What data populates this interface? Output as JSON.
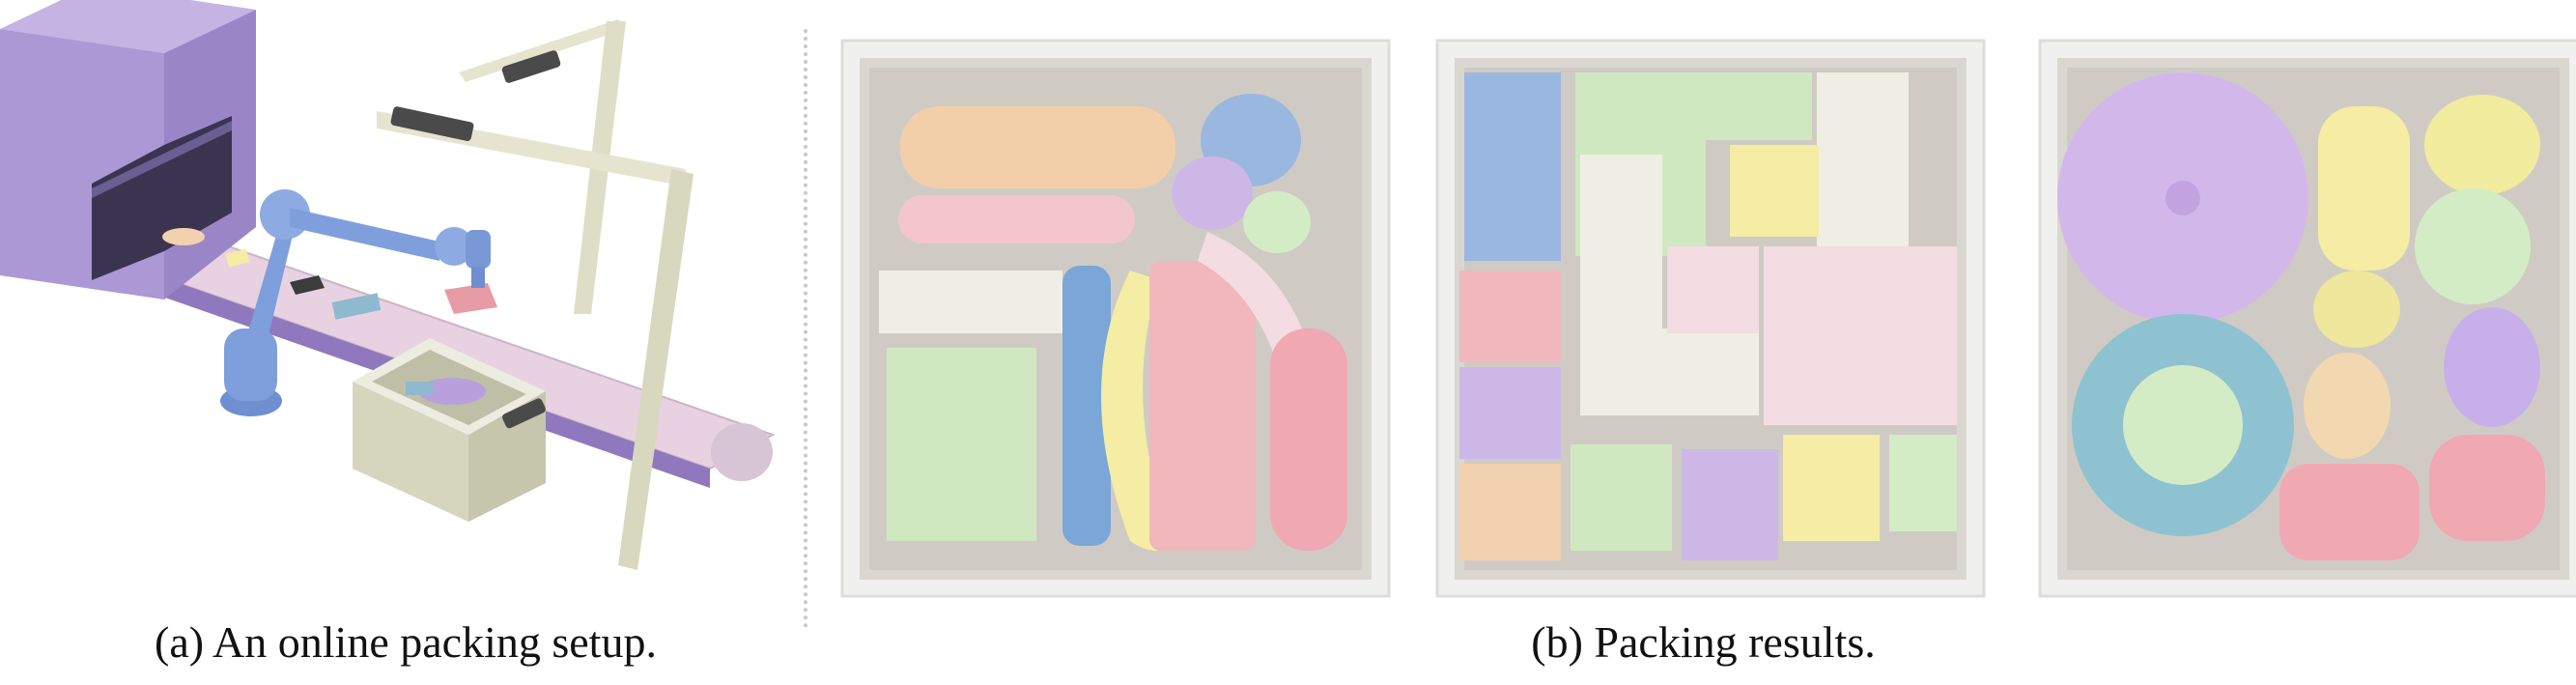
{
  "figure": {
    "caption_a": "(a) An online packing setup.",
    "caption_b": "(b) Packing results."
  },
  "colors": {
    "tunnel": "#b7a7d6",
    "conveyor": "#ead6e3",
    "robot_arm": "#7f9fdc",
    "frame": "#dcdcc4",
    "box_inner": "#e8e8e6",
    "object_palette": [
      "#9ab7df",
      "#cfe8c0",
      "#f2d1ae",
      "#f0b7bd",
      "#cdb7e6",
      "#f4eda3",
      "#efeee4",
      "#9fc7d6"
    ]
  },
  "icons": [
    "robot-arm-icon",
    "camera-icon",
    "conveyor-icon",
    "bin-icon"
  ]
}
